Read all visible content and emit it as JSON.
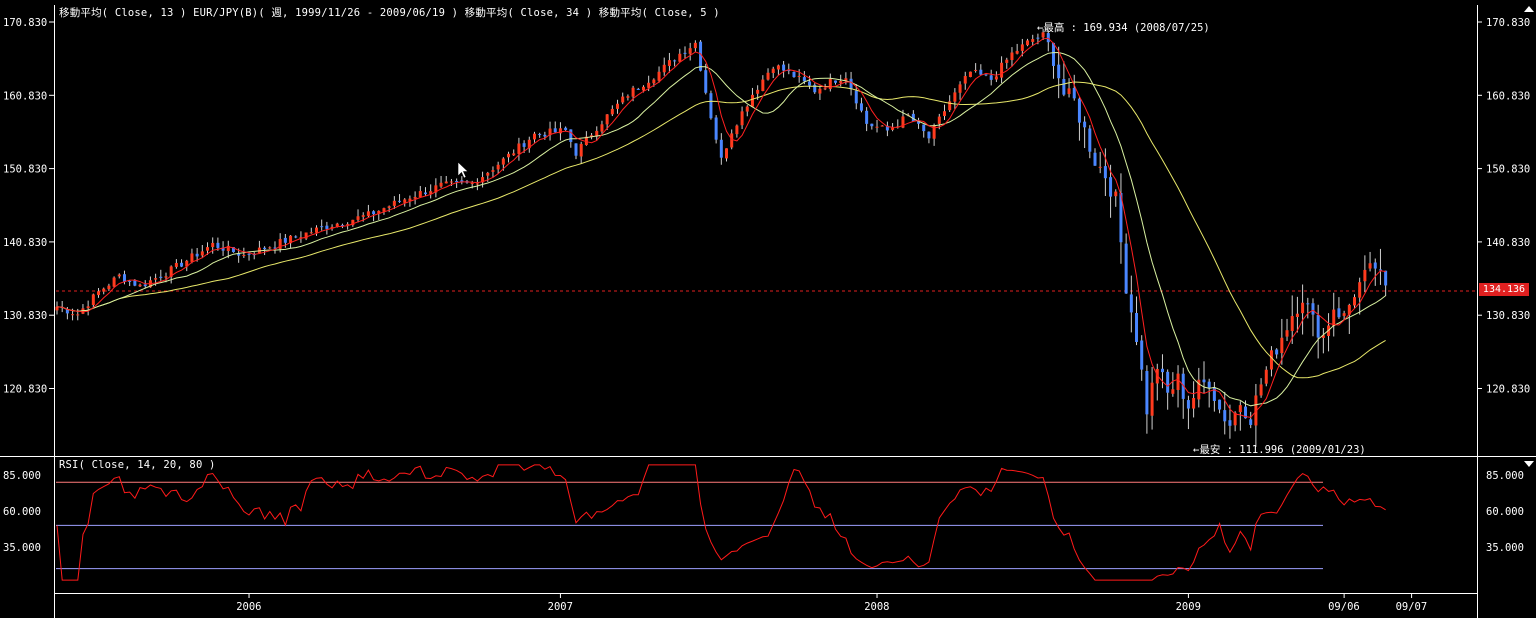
{
  "header": {
    "main_legend": "移動平均( Close, 13 )   EUR/JPY(B)( 週, 1999/11/26 - 2009/06/19 )   移動平均( Close, 34 )   移動平均( Close, 5 )",
    "rsi_legend": "RSI( Close, 14, 20, 80 )"
  },
  "colors": {
    "up_candle": "#ff3b1e",
    "down_candle": "#4a86ff",
    "ma13": "#d8f0a0",
    "ma34": "#e8e86a",
    "ma5": "#ff2020",
    "rsi": "#ff1a1a",
    "current_line": "#e02020",
    "grid": "#b0b0ff"
  },
  "annotations": {
    "high": "←最高 : 169.934 (2008/07/25)",
    "low": "←最安 : 111.996 (2009/01/23)",
    "current_price": "134.136"
  },
  "chart_data": [
    {
      "type": "candlestick",
      "title": "EUR/JPY(B)( 週, 1999/11/26 - 2009/06/19 )",
      "ylim": [
        110.5,
        172.5
      ],
      "y_ticks": [
        "170.830",
        "160.830",
        "150.830",
        "140.830",
        "130.830",
        "120.830"
      ],
      "x_tick_labels": [
        "2006",
        "2007",
        "2008",
        "2009",
        "09/06",
        "09/07"
      ],
      "current_price": 134.136,
      "high": {
        "value": 169.934,
        "date": "2008/07/25"
      },
      "low": {
        "value": 111.996,
        "date": "2009/01/23"
      },
      "close_anchors": [
        [
          0,
          132.0
        ],
        [
          4,
          131.0
        ],
        [
          8,
          134.0
        ],
        [
          12,
          136.2
        ],
        [
          16,
          134.8
        ],
        [
          22,
          137.0
        ],
        [
          30,
          140.5
        ],
        [
          36,
          139.0
        ],
        [
          44,
          141.0
        ],
        [
          52,
          143.0
        ],
        [
          60,
          144.5
        ],
        [
          68,
          147.0
        ],
        [
          74,
          148.5
        ],
        [
          80,
          148.8
        ],
        [
          86,
          152.0
        ],
        [
          92,
          155.5
        ],
        [
          98,
          156.0
        ],
        [
          100,
          153.0
        ],
        [
          104,
          156.5
        ],
        [
          110,
          161.0
        ],
        [
          116,
          164.0
        ],
        [
          120,
          166.5
        ],
        [
          123,
          168.0
        ],
        [
          126,
          158.0
        ],
        [
          128,
          152.0
        ],
        [
          130,
          156.0
        ],
        [
          134,
          161.0
        ],
        [
          138,
          165.0
        ],
        [
          142,
          163.5
        ],
        [
          146,
          161.5
        ],
        [
          150,
          163.0
        ],
        [
          152,
          163.5
        ],
        [
          156,
          157.0
        ],
        [
          160,
          156.0
        ],
        [
          164,
          158.0
        ],
        [
          168,
          155.0
        ],
        [
          172,
          160.0
        ],
        [
          176,
          164.0
        ],
        [
          180,
          163.0
        ],
        [
          184,
          166.5
        ],
        [
          188,
          168.5
        ],
        [
          190,
          169.0
        ],
        [
          192,
          166.0
        ],
        [
          194,
          161.0
        ],
        [
          196,
          160.0
        ],
        [
          198,
          156.0
        ],
        [
          200,
          152.0
        ],
        [
          202,
          150.0
        ],
        [
          204,
          146.5
        ],
        [
          206,
          135.0
        ],
        [
          208,
          128.0
        ],
        [
          210,
          118.0
        ],
        [
          212,
          124.0
        ],
        [
          214,
          120.0
        ],
        [
          216,
          122.0
        ],
        [
          218,
          118.5
        ],
        [
          220,
          121.0
        ],
        [
          222,
          122.0
        ],
        [
          224,
          118.0
        ],
        [
          226,
          116.0
        ],
        [
          228,
          119.0
        ],
        [
          230,
          117.0
        ],
        [
          232,
          121.5
        ],
        [
          234,
          125.0
        ],
        [
          236,
          128.0
        ],
        [
          238,
          131.0
        ],
        [
          240,
          133.5
        ],
        [
          242,
          130.0
        ],
        [
          244,
          128.0
        ],
        [
          246,
          132.0
        ],
        [
          248,
          130.5
        ],
        [
          250,
          134.0
        ],
        [
          252,
          136.0
        ],
        [
          254,
          137.5
        ],
        [
          256,
          134.1
        ]
      ],
      "moving_averages": [
        {
          "name": "移動平均( Close, 13 )",
          "period": 13
        },
        {
          "name": "移動平均( Close, 34 )",
          "period": 34
        },
        {
          "name": "移動平均( Close, 5 )",
          "period": 5
        }
      ]
    },
    {
      "type": "line",
      "title": "RSI( Close, 14, 20, 80 )",
      "ylim": [
        10,
        95
      ],
      "y_ticks": [
        "85.000",
        "60.000",
        "35.000"
      ],
      "levels": [
        20,
        50,
        80
      ]
    }
  ]
}
